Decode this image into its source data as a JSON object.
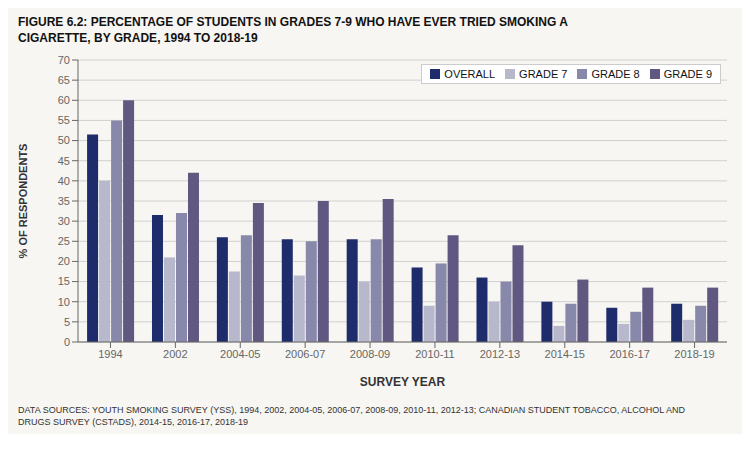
{
  "chart_data": {
    "type": "bar",
    "title": "FIGURE 6.2: PERCENTAGE OF STUDENTS IN GRADES 7-9 WHO HAVE EVER TRIED SMOKING A\nCIGARETTE, BY GRADE, 1994 TO 2018-19",
    "xlabel": "SURVEY YEAR",
    "ylabel": "% OF RESPONDENTS",
    "categories": [
      "1994",
      "2002",
      "2004-05",
      "2006-07",
      "2008-09",
      "2010-11",
      "2012-13",
      "2014-15",
      "2016-17",
      "2018-19"
    ],
    "series": [
      {
        "name": "OVERALL",
        "color": "#1e2c6b",
        "values": [
          51.5,
          31.5,
          26.0,
          25.5,
          25.5,
          18.5,
          16.0,
          10.0,
          8.5,
          9.5
        ]
      },
      {
        "name": "GRADE 7",
        "color": "#b8b8cc",
        "values": [
          40.0,
          21.0,
          17.5,
          16.5,
          15.0,
          9.0,
          10.0,
          4.0,
          4.5,
          5.5
        ]
      },
      {
        "name": "GRADE 8",
        "color": "#8888aa",
        "values": [
          55.0,
          32.0,
          26.5,
          25.0,
          25.5,
          19.5,
          15.0,
          9.5,
          7.5,
          9.0
        ]
      },
      {
        "name": "GRADE 9",
        "color": "#605880",
        "values": [
          60.0,
          42.0,
          34.5,
          35.0,
          35.5,
          26.5,
          24.0,
          15.5,
          13.5,
          13.5
        ]
      }
    ],
    "ylim": [
      0,
      70
    ],
    "yticks": [
      0,
      5,
      10,
      15,
      20,
      25,
      30,
      35,
      40,
      45,
      50,
      55,
      60,
      65,
      70
    ],
    "grid": true,
    "legend": "upper right",
    "footnote": "DATA SOURCES: YOUTH SMOKING SURVEY (YSS), 1994, 2002, 2004-05, 2006-07, 2008-09, 2010-11, 2012-13; CANADIAN STUDENT TOBACCO, ALCOHOL AND\nDRUGS SURVEY (CSTADS), 2014-15, 2016-17, 2018-19"
  }
}
